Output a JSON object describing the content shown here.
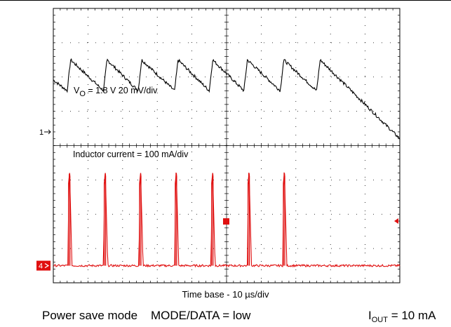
{
  "chart_data": {
    "type": "line",
    "divisions": {
      "x": 10,
      "y": 8
    },
    "x_units_per_div": "10 µs",
    "series": [
      {
        "name": "VO",
        "color": "#000000",
        "label_pre": "V",
        "label_sub": "O",
        "label_post": " = 1.8 V 20 mV/div",
        "marker": "1",
        "marker_level_div": 4.4,
        "waveform": "ripple",
        "baseline_div": 5.6,
        "amplitude_div": 0.9,
        "pulse_times_div": [
          0.4,
          1.45,
          2.45,
          3.5,
          4.5,
          5.5,
          6.55,
          7.6
        ]
      },
      {
        "name": "Inductor current",
        "color": "#e01010",
        "label": "Inductor current = 100 mA/div",
        "marker": "4",
        "marker_level_div": 0.5,
        "waveform": "pulses",
        "baseline_div": 0.5,
        "peak_div": 3.2,
        "pulse_times_div": [
          0.42,
          1.45,
          2.47,
          3.5,
          4.55,
          5.6,
          6.62
        ]
      }
    ],
    "trigger_marker_div": 1.8
  },
  "caption": {
    "timebase": "Time base - 10 µs/div",
    "mode": "Power save mode    MODE/DATA = low",
    "iout_pre": "I",
    "iout_sub": "OUT",
    "iout_post": " = 10 mA"
  }
}
